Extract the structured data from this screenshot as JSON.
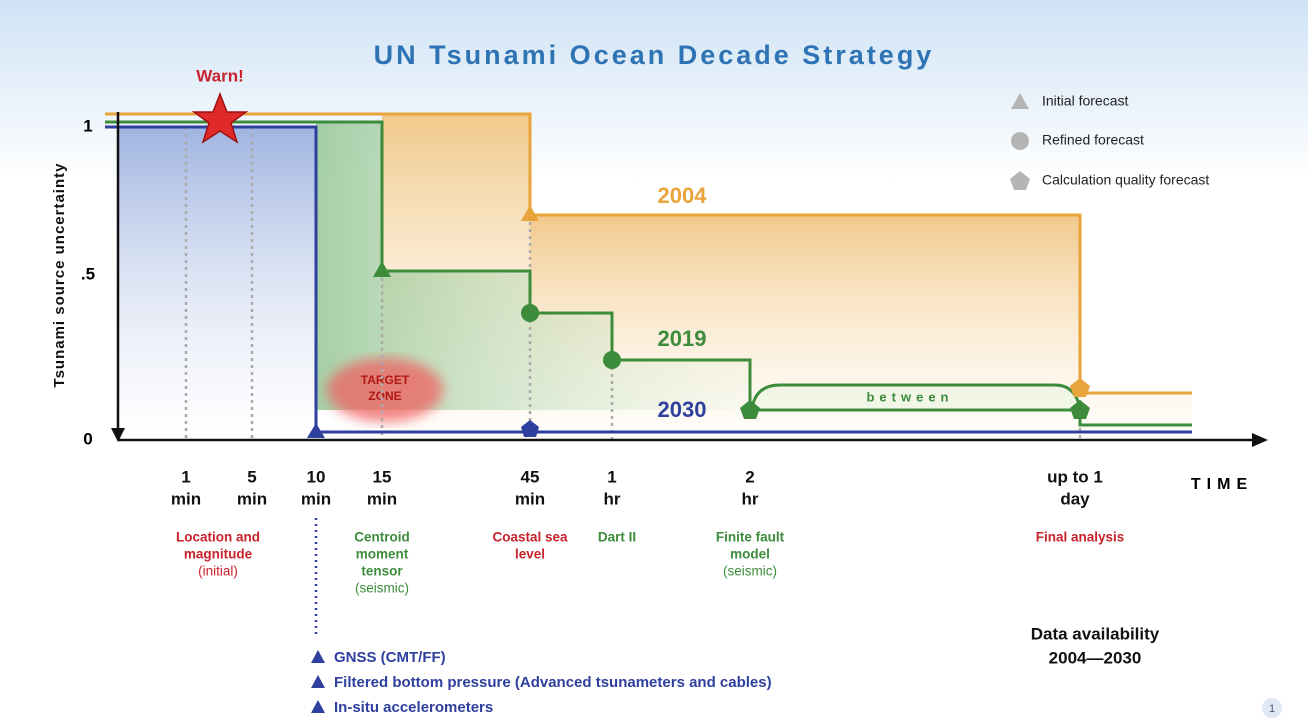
{
  "title": "UN Tsunami Ocean Decade Strategy",
  "y_axis": {
    "label": "Tsunami source uncertainty",
    "ticks": [
      "1",
      ".5",
      "0"
    ]
  },
  "x_axis": {
    "label": "TIME",
    "ticks": [
      [
        "1",
        "min"
      ],
      [
        "5",
        "min"
      ],
      [
        "10",
        "min"
      ],
      [
        "15",
        "min"
      ],
      [
        "45",
        "min"
      ],
      [
        "1",
        "hr"
      ],
      [
        "2",
        "hr"
      ],
      [
        "up to 1",
        "day"
      ]
    ]
  },
  "annotations": {
    "warn": "Warn!",
    "target_zone": [
      "TARGET",
      "ZONE"
    ],
    "between": "between"
  },
  "series_labels": [
    "2004",
    "2019",
    "2030"
  ],
  "legend": [
    "Initial forecast",
    "Refined forecast",
    "Calculation quality forecast"
  ],
  "data_sources": [
    {
      "lines": [
        "Location and",
        "magnitude"
      ],
      "note": "(initial)"
    },
    {
      "lines": [
        "Centroid",
        "moment",
        "tensor"
      ],
      "note": "(seismic)"
    },
    {
      "lines": [
        "Coastal sea",
        "level"
      ]
    },
    {
      "lines": [
        "Dart II"
      ]
    },
    {
      "lines": [
        "Finite fault",
        "model"
      ],
      "note": "(seismic)"
    },
    {
      "lines": [
        "Final analysis"
      ]
    }
  ],
  "instruments": [
    "GNSS (CMT/FF)",
    "Filtered bottom pressure (Advanced tsunameters and cables)",
    "In-situ accelerometers"
  ],
  "data_availability": [
    "Data availability",
    "2004—2030"
  ],
  "page_number": "1"
}
